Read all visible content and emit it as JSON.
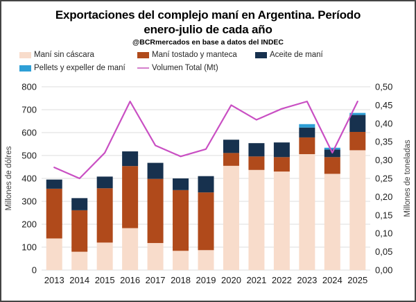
{
  "header": {
    "title_line1": "Exportaciones del complejo maní en Argentina. Período",
    "title_line2": "enero-julio de cada año",
    "subtitle": "@BCRmercados en base a datos del INDEC"
  },
  "colors": {
    "mani_sin_cascara": "#F8DCCB",
    "mani_tostado_y_manteca": "#B04A1B",
    "aceite_de_mani": "#17314E",
    "pellets_y_expeller": "#2E9FD6",
    "volumen_total_line": "#C94FC3",
    "legend_line_marker": "#D47FCC",
    "gridline": "#DCDCDC",
    "tick_text": "#1A1A1A",
    "axis_title_text": "#404040"
  },
  "legend": {
    "items": [
      {
        "key": "mani-sin-cascara",
        "label": "Maní sin cáscara",
        "marker": "swatch",
        "color": "#F8DCCB",
        "row": 0,
        "col": 0
      },
      {
        "key": "mani-tostado-y-manteca",
        "label": "Maní tostado y manteca",
        "marker": "swatch",
        "color": "#B04A1B",
        "row": 0,
        "col": 1
      },
      {
        "key": "aceite-de-mani",
        "label": "Aceite de maní",
        "marker": "swatch",
        "color": "#17314E",
        "row": 0,
        "col": 2
      },
      {
        "key": "pellets-y-expeller-de-mani",
        "label": "Pellets y expeller de maní",
        "marker": "swatch",
        "color": "#2E9FD6",
        "row": 1,
        "col": 0
      },
      {
        "key": "volumen-total-mt",
        "label": "Volumen Total (Mt)",
        "marker": "line",
        "color": "#D47FCC",
        "row": 1,
        "col": 1
      }
    ]
  },
  "chart_data": {
    "type": "bar",
    "subtype": "stacked-bars-with-line-overlay",
    "title": "Exportaciones del complejo maní en Argentina. Período enero-julio de cada año",
    "subtitle": "@BCRmercados en base a datos del INDEC",
    "categories": [
      "2013",
      "2014",
      "2015",
      "2016",
      "2017",
      "2018",
      "2019",
      "2020",
      "2021",
      "2022",
      "2023",
      "2024",
      "2025"
    ],
    "series": [
      {
        "key": "mani-sin-cascara",
        "name": "Maní sin cáscara",
        "color": "#F8DCCB",
        "axis": "left",
        "values": [
          138,
          80,
          120,
          183,
          118,
          84,
          87,
          455,
          437,
          430,
          506,
          420,
          523
        ]
      },
      {
        "key": "mani-tostado-y-manteca",
        "name": "Maní tostado y manteca",
        "color": "#B04A1B",
        "axis": "left",
        "values": [
          217,
          181,
          237,
          271,
          280,
          265,
          252,
          56,
          59,
          63,
          73,
          73,
          80
        ]
      },
      {
        "key": "aceite-de-mani",
        "name": "Aceite de maní",
        "color": "#17314E",
        "axis": "left",
        "values": [
          40,
          53,
          51,
          64,
          70,
          51,
          71,
          58,
          58,
          64,
          43,
          33,
          74
        ]
      },
      {
        "key": "pellets-y-expeller-de-mani",
        "name": "Pellets y expeller de maní",
        "color": "#2E9FD6",
        "axis": "left",
        "values": [
          0,
          0,
          0,
          0,
          0,
          0,
          0,
          0,
          0,
          0,
          15,
          8,
          9
        ]
      }
    ],
    "stacked_totals": [
      395,
      314,
      408,
      518,
      468,
      400,
      410,
      569,
      554,
      557,
      637,
      534,
      686
    ],
    "line_series": {
      "key": "volumen-total-mt",
      "name": "Volumen Total (Mt)",
      "color": "#C94FC3",
      "axis": "right",
      "values": [
        0.28,
        0.25,
        0.32,
        0.46,
        0.34,
        0.31,
        0.33,
        0.45,
        0.41,
        0.44,
        0.46,
        0.32,
        0.46
      ]
    },
    "left_axis": {
      "label": "Millones de dólres",
      "min": 0,
      "max": 800,
      "step": 100
    },
    "right_axis": {
      "label": "Millones de toneladas",
      "min": 0,
      "max": 0.5,
      "step": 0.05,
      "decimal_separator": ","
    },
    "grid": "horizontal",
    "legend_position": "top-left"
  }
}
